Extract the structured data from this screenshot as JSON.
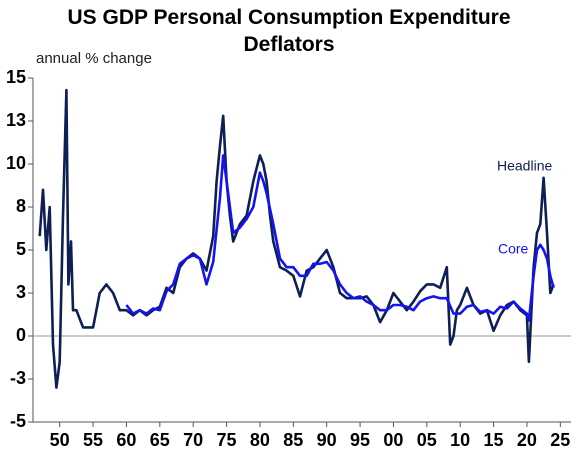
{
  "chart_data": {
    "type": "line",
    "title": "US GDP Personal Consumption Expenditure Deflators",
    "subtitle": "annual % change",
    "xlim": [
      1946,
      2026.6
    ],
    "xticks": [
      {
        "value": 1950,
        "label": "50"
      },
      {
        "value": 1955,
        "label": "55"
      },
      {
        "value": 1960,
        "label": "60"
      },
      {
        "value": 1965,
        "label": "65"
      },
      {
        "value": 1970,
        "label": "70"
      },
      {
        "value": 1975,
        "label": "75"
      },
      {
        "value": 1980,
        "label": "80"
      },
      {
        "value": 1985,
        "label": "85"
      },
      {
        "value": 1990,
        "label": "90"
      },
      {
        "value": 1995,
        "label": "95"
      },
      {
        "value": 2000,
        "label": "00"
      },
      {
        "value": 2005,
        "label": "05"
      },
      {
        "value": 2010,
        "label": "10"
      },
      {
        "value": 2015,
        "label": "15"
      },
      {
        "value": 2020,
        "label": "20"
      },
      {
        "value": 2025,
        "label": "25"
      }
    ],
    "ylim": [
      -5,
      15
    ],
    "yticks": [
      -5,
      {
        "value": -2.5,
        "label": "-3"
      },
      0,
      {
        "value": 2.5,
        "label": "3"
      },
      5,
      {
        "value": 7.5,
        "label": "8"
      },
      10,
      {
        "value": 12.5,
        "label": "13"
      },
      15
    ],
    "zero_line": true,
    "series": [
      {
        "name": "Headline",
        "color": "#0d1f55",
        "x": [
          1947,
          1947.5,
          1948,
          1948.5,
          1949,
          1949.5,
          1950,
          1950.5,
          1951,
          1951.3,
          1951.7,
          1952,
          1952.5,
          1953,
          1953.5,
          1954,
          1954.5,
          1955,
          1955.5,
          1956,
          1957,
          1958,
          1959,
          1960,
          1961,
          1962,
          1963,
          1964,
          1965,
          1966,
          1967,
          1968,
          1969,
          1970,
          1971,
          1972,
          1973,
          1973.5,
          1974,
          1974.5,
          1975,
          1975.5,
          1976,
          1977,
          1978,
          1979,
          1980,
          1980.5,
          1981,
          1981.5,
          1982,
          1983,
          1984,
          1985,
          1986,
          1987,
          1988,
          1989,
          1990,
          1991,
          1992,
          1993,
          1994,
          1995,
          1996,
          1997,
          1998,
          1999,
          2000,
          2001,
          2002,
          2003,
          2004,
          2005,
          2006,
          2007,
          2008,
          2008.5,
          2009,
          2009.5,
          2010,
          2011,
          2012,
          2013,
          2014,
          2015,
          2016,
          2017,
          2018,
          2019,
          2020,
          2020.3,
          2021,
          2021.5,
          2022,
          2022.5,
          2023,
          2023.5,
          2024
        ],
        "values": [
          5.8,
          8.5,
          5,
          7.5,
          -0.5,
          -3,
          -1.5,
          7,
          14.3,
          3,
          5.5,
          1.5,
          1.5,
          1,
          0.5,
          0.5,
          0.5,
          0.5,
          1.5,
          2.5,
          3,
          2.5,
          1.5,
          1.5,
          1.2,
          1.5,
          1.2,
          1.5,
          1.7,
          2.8,
          2.5,
          4,
          4.5,
          4.8,
          4.5,
          3.8,
          5.8,
          9,
          11,
          12.8,
          9,
          7,
          5.5,
          6.5,
          7,
          9,
          10.5,
          10,
          9,
          7,
          5.5,
          4,
          3.8,
          3.5,
          2.3,
          3.8,
          4,
          4.5,
          5,
          4,
          2.5,
          2.2,
          2.2,
          2.2,
          2.3,
          1.8,
          0.8,
          1.5,
          2.5,
          2,
          1.5,
          2,
          2.6,
          3,
          3,
          2.8,
          4,
          -0.5,
          0,
          1.5,
          1.8,
          2.8,
          1.8,
          1.3,
          1.5,
          0.3,
          1.2,
          1.8,
          2,
          1.5,
          1.2,
          -1.5,
          4,
          6,
          6.5,
          9.2,
          6,
          2.5,
          3
        ]
      },
      {
        "name": "Core",
        "color": "#1414f0",
        "x": [
          1960,
          1961,
          1962,
          1963,
          1964,
          1965,
          1966,
          1967,
          1968,
          1969,
          1970,
          1971,
          1972,
          1973,
          1974,
          1974.5,
          1975,
          1976,
          1977,
          1978,
          1979,
          1980,
          1980.5,
          1981,
          1982,
          1983,
          1984,
          1985,
          1986,
          1987,
          1988,
          1989,
          1990,
          1991,
          1992,
          1993,
          1994,
          1995,
          1996,
          1997,
          1998,
          1999,
          2000,
          2001,
          2002,
          2003,
          2004,
          2005,
          2006,
          2007,
          2008,
          2009,
          2010,
          2011,
          2012,
          2013,
          2014,
          2015,
          2016,
          2017,
          2018,
          2019,
          2020,
          2020.3,
          2021,
          2021.5,
          2022,
          2022.5,
          2023,
          2023.5,
          2024
        ],
        "values": [
          1.8,
          1.3,
          1.5,
          1.3,
          1.6,
          1.5,
          2.6,
          3,
          4.2,
          4.5,
          4.7,
          4.5,
          3,
          4.3,
          8,
          10.5,
          9,
          6,
          6.3,
          6.8,
          7.5,
          9.5,
          9,
          8.3,
          6.5,
          4.5,
          4,
          4,
          3.5,
          3.5,
          4.2,
          4.2,
          4.3,
          3.8,
          3,
          2.5,
          2.2,
          2.3,
          2,
          1.8,
          1.5,
          1.5,
          1.8,
          1.8,
          1.7,
          1.5,
          2,
          2.2,
          2.3,
          2.2,
          2.2,
          1.3,
          1.3,
          1.7,
          1.8,
          1.4,
          1.5,
          1.3,
          1.7,
          1.6,
          2,
          1.6,
          1.3,
          0.9,
          3.5,
          5,
          5.3,
          5,
          4.5,
          3.5,
          2.8
        ]
      }
    ]
  }
}
